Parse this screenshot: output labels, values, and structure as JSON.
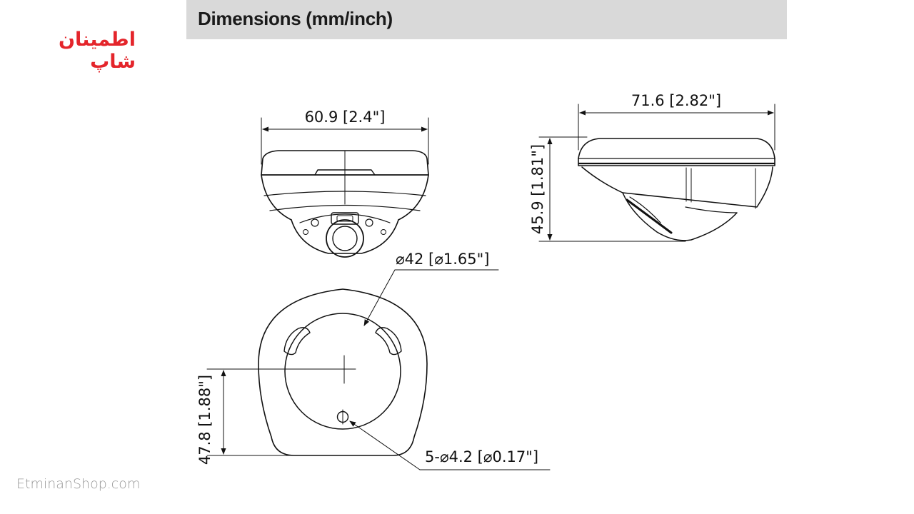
{
  "header": {
    "title": "Dimensions (mm/inch)"
  },
  "brand": {
    "logo_text": "اطمینان شاپ",
    "website": "EtminanShop.com",
    "logo_color": "#e4252b",
    "header_band_color": "#d9d9d9"
  },
  "dimensions": {
    "front_width": "60.9 [2.4\"]",
    "side_width": "71.6 [2.82\"]",
    "side_height": "45.9 [1.81\"]",
    "base_diameter": "⌀42 [⌀1.65\"]",
    "base_offset": "47.8 [1.88\"]",
    "mount_holes": "5-⌀4.2 [⌀0.17\"]"
  }
}
